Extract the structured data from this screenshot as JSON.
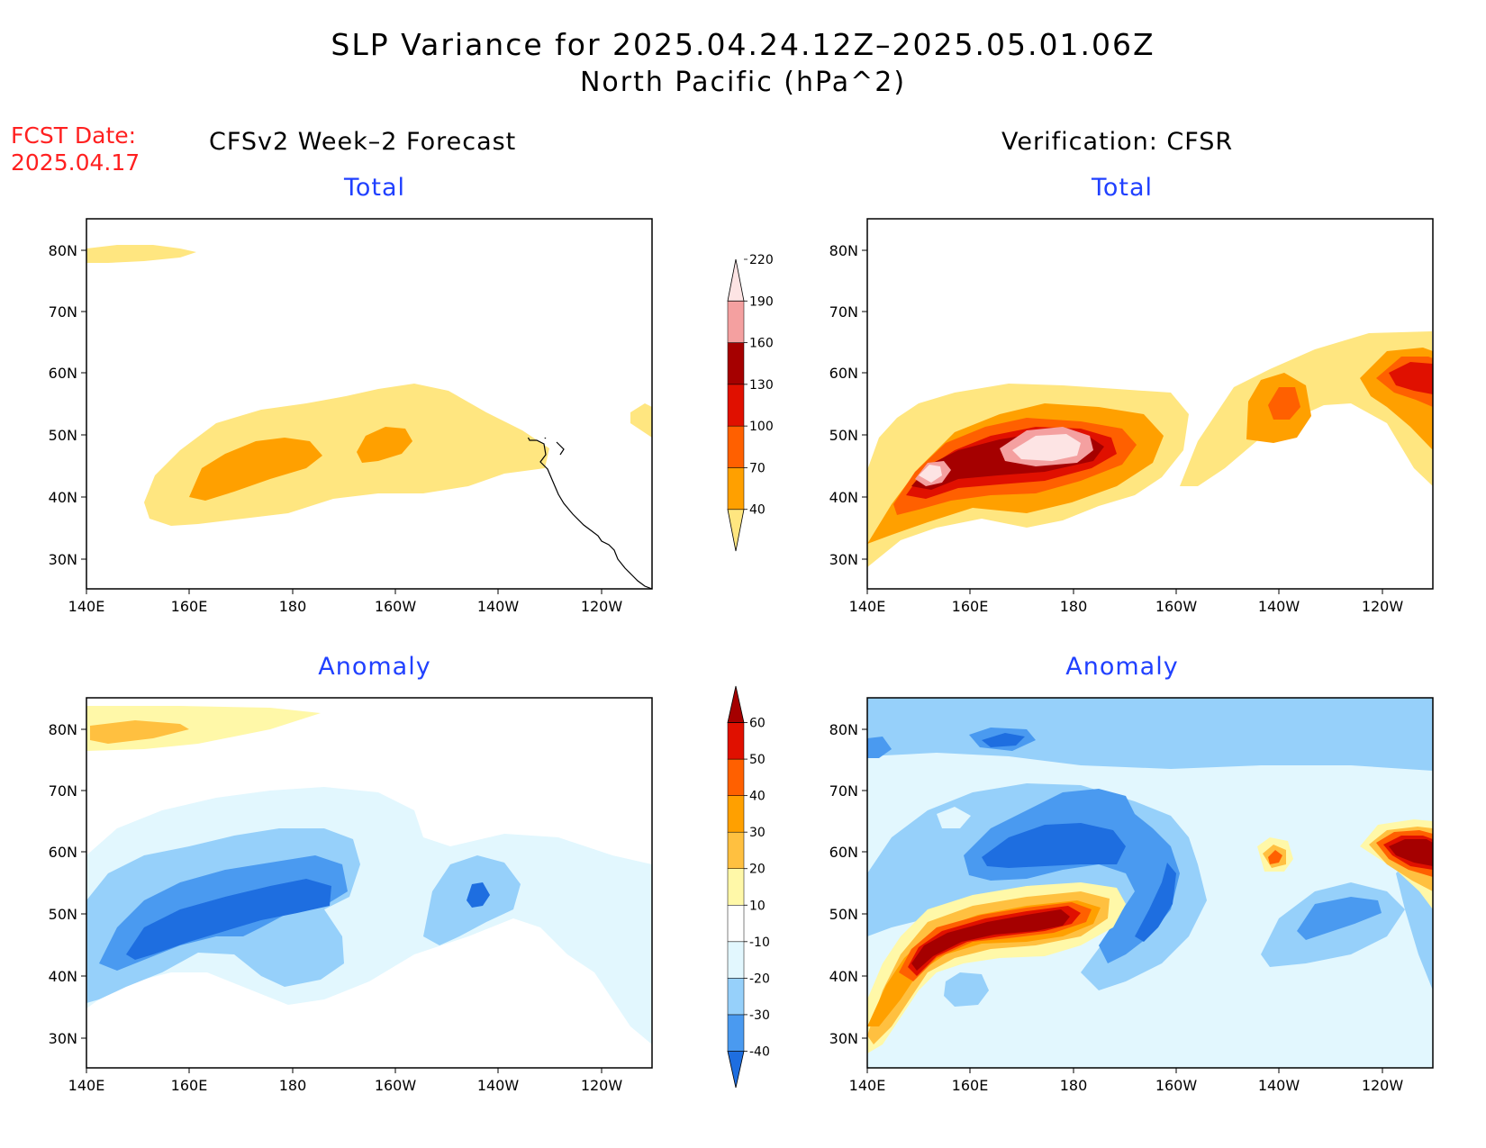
{
  "title": {
    "line1": "SLP Variance for 2025.04.24.12Z–2025.05.01.06Z",
    "line2": "North Pacific (hPa^2)"
  },
  "fcst_date": {
    "label": "FCST Date:",
    "value": "2025.04.17"
  },
  "columns": {
    "left": "CFSv2 Week–2 Forecast",
    "right": "Verification: CFSR"
  },
  "panels": {
    "top_left": "Total",
    "top_right": "Total",
    "bottom_left": "Anomaly",
    "bottom_right": "Anomaly"
  },
  "axes": {
    "lon_labels": [
      "140E",
      "160E",
      "180",
      "160W",
      "140W",
      "120W"
    ],
    "lat_labels": [
      "80N",
      "70N",
      "60N",
      "50N",
      "40N",
      "30N"
    ]
  },
  "colorbars": {
    "total": {
      "levels": [
        "40",
        "70",
        "100",
        "130",
        "160",
        "190",
        "220"
      ],
      "colors": [
        "#ffe680",
        "#ffa000",
        "#ff6000",
        "#e01000",
        "#a50000",
        "#f4a0a0",
        "#fde4e4"
      ]
    },
    "anomaly": {
      "levels": [
        "-40",
        "-30",
        "-20",
        "-10",
        "10",
        "20",
        "30",
        "40",
        "50",
        "60"
      ],
      "colors": [
        "#1e6ee0",
        "#4a9af0",
        "#96d0fa",
        "#e2f7fe",
        "#ffffff",
        "#fff8a8",
        "#ffc040",
        "#ffa000",
        "#ff6000",
        "#e01000",
        "#a50000"
      ]
    }
  },
  "colors": {
    "title_text": "#000000",
    "panel_title": "#2040ff",
    "fcst_text": "#ff2020"
  }
}
